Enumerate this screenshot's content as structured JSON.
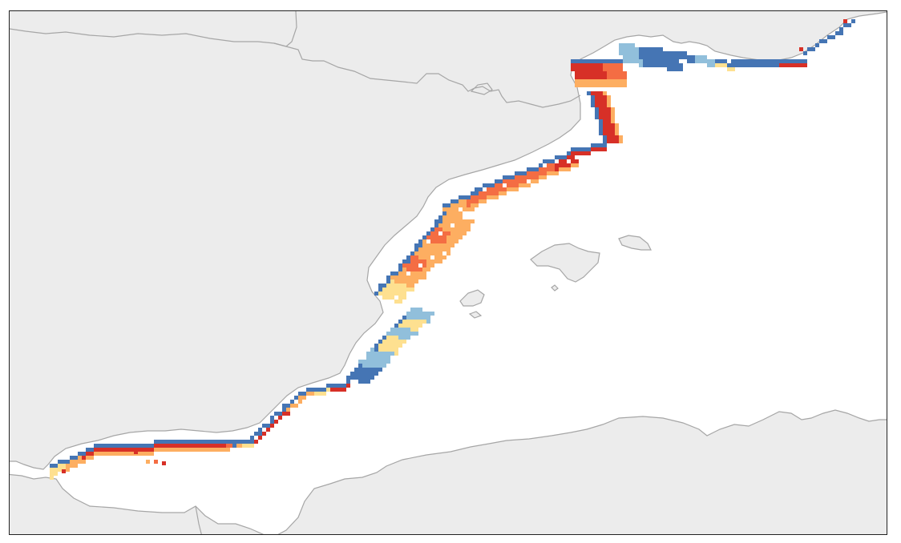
{
  "map": {
    "land_color": "#ececec",
    "sea_color": "#ffffff",
    "border_color": "#a6a6a6",
    "frame_color": "#222222"
  },
  "legend_scale": {
    "colors": [
      "#4575b4",
      "#91bfdb",
      "#fee090",
      "#fdae61",
      "#f46d43",
      "#d73027"
    ],
    "low_color": "#4575b4",
    "high_color": "#d73027"
  },
  "icons": [
    "coastal-model-raster",
    "island-mallorca",
    "island-ibiza",
    "island-cabrera"
  ]
}
